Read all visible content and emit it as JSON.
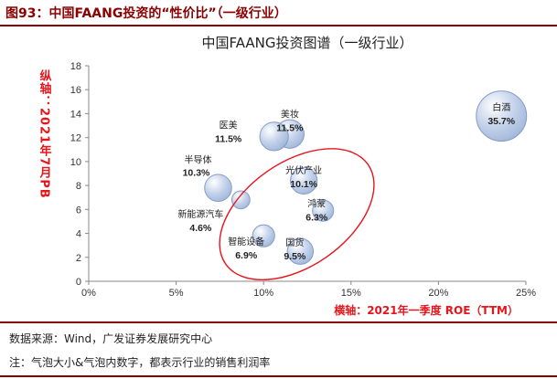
{
  "figure": {
    "header": "图93：中国FAANG投资的“性价比”（一级行业）",
    "source": "数据来源：Wind，广发证券发展研究中心",
    "note": "注：气泡大小&气泡内数字，都表示行业的销售利润率"
  },
  "chart_data": {
    "type": "bubble",
    "title": "中国FAANG投资图谱（一级行业）",
    "xlabel": "横轴：2021年一季度 ROE（TTM）",
    "ylabel": "纵轴：2021年7月PB",
    "xlim": [
      0,
      0.25
    ],
    "ylim": [
      0,
      18
    ],
    "x_ticks": [
      "0%",
      "5%",
      "10%",
      "15%",
      "20%",
      "25%"
    ],
    "y_ticks": [
      "0",
      "2",
      "4",
      "6",
      "8",
      "10",
      "12",
      "14",
      "16",
      "18"
    ],
    "points": [
      {
        "name": "白酒",
        "x": 0.236,
        "y": 13.8,
        "size_label": "35.7%",
        "size": 35.7
      },
      {
        "name": "美妆",
        "x": 0.115,
        "y": 12.3,
        "size_label": "11.5%",
        "size": 11.5
      },
      {
        "name": "医美",
        "x": 0.106,
        "y": 12.1,
        "size_label": "11.5%",
        "size": 11.5
      },
      {
        "name": "半导体",
        "x": 0.074,
        "y": 7.8,
        "size_label": "10.3%",
        "size": 10.3
      },
      {
        "name": "新能源汽车",
        "x": 0.087,
        "y": 6.8,
        "size_label": "4.6%",
        "size": 4.6
      },
      {
        "name": "光伏产业",
        "x": 0.123,
        "y": 8.4,
        "size_label": "10.1%",
        "size": 10.1
      },
      {
        "name": "鸿蒙",
        "x": 0.134,
        "y": 5.9,
        "size_label": "6.3%",
        "size": 6.3
      },
      {
        "name": "智能设备",
        "x": 0.1,
        "y": 3.8,
        "size_label": "6.9%",
        "size": 6.9
      },
      {
        "name": "国货",
        "x": 0.121,
        "y": 2.5,
        "size_label": "9.5%",
        "size": 9.5
      }
    ],
    "highlight": {
      "shape": "ellipse",
      "color": "#e8141b"
    },
    "colors": {
      "bubble_fill": "#9db4d9",
      "bubble_stroke": "#7f97c2",
      "title": "#222222",
      "label": "#222222",
      "axis_label": "#e8141b",
      "grid": "#d9d9d9",
      "header": "#8b0000"
    }
  }
}
